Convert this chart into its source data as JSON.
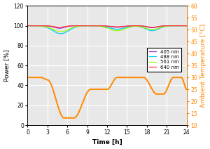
{
  "xlabel": "Time [h]",
  "ylabel_left": "Power [%]",
  "ylabel_right": "Ambient Temperature [°C]",
  "xlim": [
    0,
    24
  ],
  "ylim_left": [
    0,
    120
  ],
  "ylim_right": [
    10,
    60
  ],
  "xticks": [
    0,
    3,
    6,
    9,
    12,
    15,
    18,
    21,
    24
  ],
  "yticks_left": [
    0,
    20,
    40,
    60,
    80,
    100,
    120
  ],
  "yticks_right": [
    10,
    15,
    20,
    25,
    30,
    35,
    40,
    45,
    50,
    55,
    60
  ],
  "lines": [
    {
      "label": "405 nm",
      "color": "#9933CC",
      "lw": 0.9
    },
    {
      "label": "488 nm",
      "color": "#00CCFF",
      "lw": 0.9
    },
    {
      "label": "561 nm",
      "color": "#99FF00",
      "lw": 0.9
    },
    {
      "label": "640 nm",
      "color": "#FF3333",
      "lw": 0.9
    }
  ],
  "temp_color": "#FF8800",
  "temp_lw": 1.4,
  "plot_bg": "#e8e8e8",
  "grid_color": "white",
  "fig_bg": "white"
}
